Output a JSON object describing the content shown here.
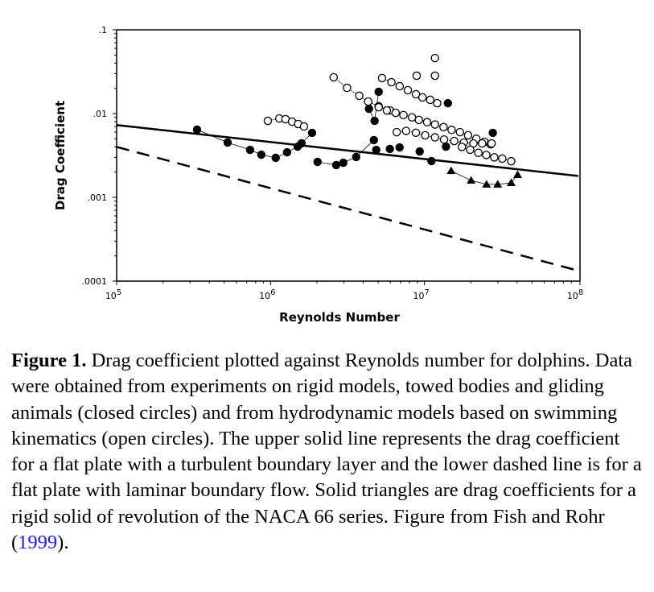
{
  "chart_data": {
    "type": "scatter",
    "title": "",
    "xlabel": "Reynolds Number",
    "ylabel": "Drag Coefficient",
    "xscale": "log",
    "yscale": "log",
    "xlim": [
      100000,
      100000000
    ],
    "ylim": [
      0.0001,
      0.1
    ],
    "grid": false,
    "legend": "none",
    "x_ticks": [
      {
        "value": 100000,
        "base": "10",
        "exp": "5"
      },
      {
        "value": 1000000,
        "base": "10",
        "exp": "6"
      },
      {
        "value": 10000000,
        "base": "10",
        "exp": "7"
      },
      {
        "value": 100000000,
        "base": "10",
        "exp": "8"
      }
    ],
    "y_ticks": [
      {
        "value": 0.1,
        "label": ".1"
      },
      {
        "value": 0.01,
        "label": ".01"
      },
      {
        "value": 0.001,
        "label": ".001"
      },
      {
        "value": 0.0001,
        "label": ".0001"
      }
    ],
    "lines": [
      {
        "name": "flat plate turbulent boundary layer",
        "style": "solid",
        "x": [
          100000,
          100000000
        ],
        "y": [
          0.0073,
          0.0018
        ]
      },
      {
        "name": "flat plate laminar boundary flow",
        "style": "dashed",
        "x": [
          100000,
          100000000
        ],
        "y": [
          0.004,
          0.000133
        ]
      }
    ],
    "series": [
      {
        "name": "closed circles (rigid models, towed bodies, gliding animals)",
        "marker": "filled-circle",
        "connected_groups": [
          {
            "x": [
              333000,
              526000,
              736000,
              871000,
              1080000,
              1280000,
              1500000,
              1590000,
              1860000
            ],
            "y": [
              0.00643,
              0.00451,
              0.00369,
              0.00323,
              0.00296,
              0.00345,
              0.00403,
              0.00441,
              0.00588
            ]
          },
          {
            "x": [
              2020000,
              2670000,
              2970000,
              3600000,
              4690000
            ],
            "y": [
              0.00265,
              0.00243,
              0.00259,
              0.00303,
              0.00482
            ]
          },
          {
            "x": [
              5040000,
              4740000,
              4360000
            ],
            "y": [
              0.0182,
              0.00819,
              0.0114
            ]
          }
        ],
        "points": {
          "x": [
            4860000,
            5960000,
            6890000,
            9310000,
            11100000,
            13800000,
            14200000,
            27800000
          ],
          "y": [
            0.00369,
            0.00378,
            0.00394,
            0.00353,
            0.00271,
            0.00403,
            0.0133,
            0.00588
          ]
        }
      },
      {
        "name": "open circles (hydrodynamic models based on swimming kinematics)",
        "marker": "open-circle",
        "connected_groups": [
          {
            "x": [
              960000,
              1140000,
              1250000,
              1380000,
              1510000,
              1650000
            ],
            "y": [
              0.00819,
              0.00875,
              0.00857,
              0.00801,
              0.0075,
              0.00701
            ]
          },
          {
            "x": [
              2570000,
              3140000,
              3770000,
              4310000,
              5040000,
              5970000
            ],
            "y": [
              0.0271,
              0.0203,
              0.0163,
              0.0139,
              0.0122,
              0.0109
            ]
          },
          {
            "x": [
              5300000,
              6100000,
              6900000,
              7800000,
              8800000,
              9700000,
              10900000,
              12100000
            ],
            "y": [
              0.0265,
              0.0237,
              0.0212,
              0.019,
              0.017,
              0.0156,
              0.0146,
              0.0133
            ]
          },
          {
            "x": [
              5040000,
              5700000,
              6500000,
              7300000,
              8300000,
              9200000,
              10400000,
              11700000,
              13300000,
              15000000,
              17000000,
              19200000,
              21700000,
              24500000,
              26900000
            ],
            "y": [
              0.0119,
              0.0109,
              0.0102,
              0.0096,
              0.009,
              0.0084,
              0.0079,
              0.0074,
              0.0069,
              0.0064,
              0.006,
              0.0055,
              0.005,
              0.0046,
              0.0043
            ]
          },
          {
            "x": [
              6600000,
              7600000,
              8800000,
              10100000,
              11700000,
              13400000,
              15600000,
              18000000,
              20800000,
              23700000,
              27300000
            ],
            "y": [
              0.006,
              0.0062,
              0.0059,
              0.0055,
              0.0052,
              0.0049,
              0.0047,
              0.0045,
              0.0044,
              0.0044,
              0.0044
            ]
          },
          {
            "x": [
              17500000,
              19800000,
              22400000,
              25200000,
              28400000,
              32000000,
              36600000
            ],
            "y": [
              0.004,
              0.0037,
              0.0034,
              0.0032,
              0.003,
              0.0029,
              0.0027
            ]
          }
        ],
        "points": {
          "x": [
            8900000,
            11700000,
            11700000
          ],
          "y": [
            0.0283,
            0.0283,
            0.046
          ]
        }
      },
      {
        "name": "solid triangles (NACA 66 series rigid solid of revolution)",
        "marker": "filled-triangle",
        "connected_groups": [
          {
            "x": [
              14900000,
              20100000,
              25300000,
              29900000,
              36600000,
              40300000
            ],
            "y": [
              0.00207,
              0.00159,
              0.00143,
              0.00143,
              0.00149,
              0.00186
            ]
          }
        ],
        "points": {
          "x": [],
          "y": []
        }
      }
    ]
  },
  "caption": {
    "lead": "Figure 1.",
    "text": " Drag coefficient plotted against Reynolds number for dolphins. Data were obtained from experiments on rigid models, towed bodies and gliding animals (closed circles) and from hydrodynamic models based on swimming kinematics (open circles). The upper solid line represents the drag coefficient for a flat plate with a turbulent boundary layer and the lower dashed line is for a flat plate with laminar boundary flow. Solid triangles are drag coefficients for a rigid solid of revolution of the NACA 66 series. Figure from Fish and Rohr (",
    "citation": "1999",
    "tail": ")."
  }
}
